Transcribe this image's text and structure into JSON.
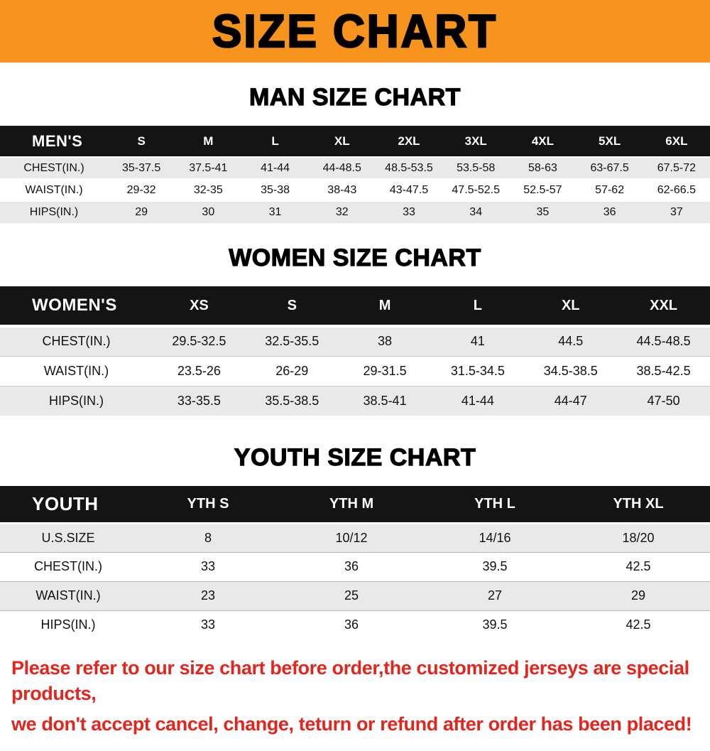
{
  "banner": {
    "title": "SIZE CHART",
    "background_color": "#f7941d",
    "text_color": "#000000"
  },
  "sections": [
    {
      "heading": "MAN SIZE CHART",
      "table": {
        "name": "mens-size-table",
        "header": [
          "MEN'S",
          "S",
          "M",
          "L",
          "XL",
          "2XL",
          "3XL",
          "4XL",
          "5XL",
          "6XL"
        ],
        "rows": [
          [
            "CHEST(IN.)",
            "35-37.5",
            "37.5-41",
            "41-44",
            "44-48.5",
            "48.5-53.5",
            "53.5-58",
            "58-63",
            "63-67.5",
            "67.5-72"
          ],
          [
            "WAIST(IN.)",
            "29-32",
            "32-35",
            "35-38",
            "38-43",
            "43-47.5",
            "47.5-52.5",
            "52.5-57",
            "57-62",
            "62-66.5"
          ],
          [
            "HIPS(IN.)",
            "29",
            "30",
            "31",
            "32",
            "33",
            "34",
            "35",
            "36",
            "37"
          ]
        ]
      }
    },
    {
      "heading": "WOMEN SIZE CHART",
      "table": {
        "name": "womens-size-table",
        "header": [
          "WOMEN'S",
          "XS",
          "S",
          "M",
          "L",
          "XL",
          "XXL"
        ],
        "rows": [
          [
            "CHEST(IN.)",
            "29.5-32.5",
            "32.5-35.5",
            "38",
            "41",
            "44.5",
            "44.5-48.5"
          ],
          [
            "WAIST(IN.)",
            "23.5-26",
            "26-29",
            "29-31.5",
            "31.5-34.5",
            "34.5-38.5",
            "38.5-42.5"
          ],
          [
            "HIPS(IN.)",
            "33-35.5",
            "35.5-38.5",
            "38.5-41",
            "41-44",
            "44-47",
            "47-50"
          ]
        ]
      }
    },
    {
      "heading": "YOUTH SIZE CHART",
      "table": {
        "name": "youth-size-table",
        "header": [
          "YOUTH",
          "YTH S",
          "YTH M",
          "YTH L",
          "YTH XL"
        ],
        "rows": [
          [
            "U.S.SIZE",
            "8",
            "10/12",
            "14/16",
            "18/20"
          ],
          [
            "CHEST(IN.)",
            "33",
            "36",
            "39.5",
            "42.5"
          ],
          [
            "WAIST(IN.)",
            "23",
            "25",
            "27",
            "29"
          ],
          [
            "HIPS(IN.)",
            "33",
            "36",
            "39.5",
            "42.5"
          ]
        ]
      }
    }
  ],
  "footer": {
    "lines": [
      "Please refer to our size chart before order,the customized jerseys are special products,",
      "we don't accept cancel, change, teturn or refund after order has been placed!"
    ],
    "text_color": "#e2261e"
  },
  "colors": {
    "table_header_bg": "#141414",
    "alt_row_bg": "#e9e9e9"
  }
}
